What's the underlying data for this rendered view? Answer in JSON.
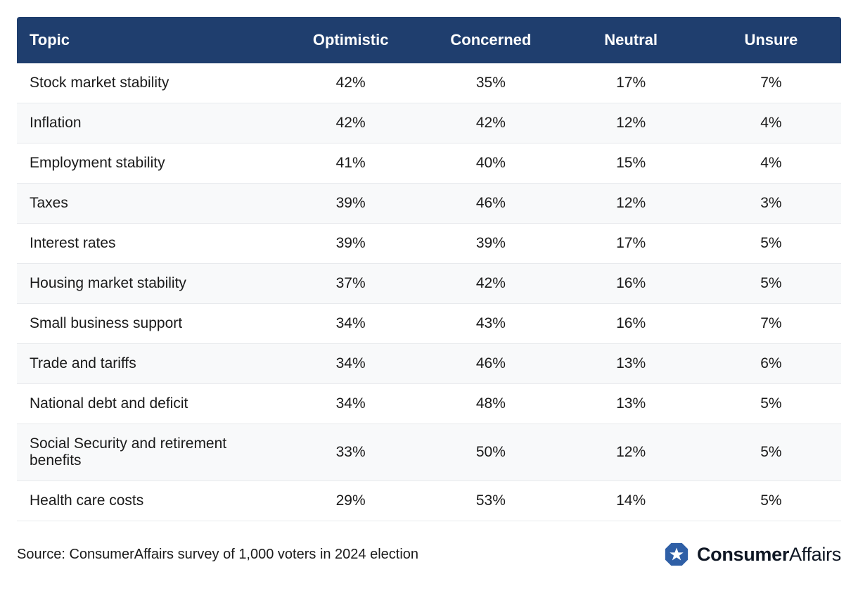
{
  "table": {
    "type": "table",
    "header_bg": "#1f3e6e",
    "header_fg": "#ffffff",
    "row_alt_bg": "#f8f9fa",
    "row_bg": "#ffffff",
    "border_color": "#e8eaed",
    "header_fontsize": 22,
    "cell_fontsize": 21,
    "columns": [
      {
        "label": "Topic",
        "align": "left",
        "width": "32%"
      },
      {
        "label": "Optimistic",
        "align": "center",
        "width": "17%"
      },
      {
        "label": "Concerned",
        "align": "center",
        "width": "17%"
      },
      {
        "label": "Neutral",
        "align": "center",
        "width": "17%"
      },
      {
        "label": "Unsure",
        "align": "center",
        "width": "17%"
      }
    ],
    "rows": [
      {
        "topic": "Stock market stability",
        "optimistic": "42%",
        "concerned": "35%",
        "neutral": "17%",
        "unsure": "7%"
      },
      {
        "topic": "Inflation",
        "optimistic": "42%",
        "concerned": "42%",
        "neutral": "12%",
        "unsure": "4%"
      },
      {
        "topic": "Employment stability",
        "optimistic": "41%",
        "concerned": "40%",
        "neutral": "15%",
        "unsure": "4%"
      },
      {
        "topic": "Taxes",
        "optimistic": "39%",
        "concerned": "46%",
        "neutral": "12%",
        "unsure": "3%"
      },
      {
        "topic": "Interest rates",
        "optimistic": "39%",
        "concerned": "39%",
        "neutral": "17%",
        "unsure": "5%"
      },
      {
        "topic": "Housing market stability",
        "optimistic": "37%",
        "concerned": "42%",
        "neutral": "16%",
        "unsure": "5%"
      },
      {
        "topic": "Small business support",
        "optimistic": "34%",
        "concerned": "43%",
        "neutral": "16%",
        "unsure": "7%"
      },
      {
        "topic": "Trade and tariffs",
        "optimistic": "34%",
        "concerned": "46%",
        "neutral": "13%",
        "unsure": "6%"
      },
      {
        "topic": "National debt and deficit",
        "optimistic": "34%",
        "concerned": "48%",
        "neutral": "13%",
        "unsure": "5%"
      },
      {
        "topic": "Social Security and retirement benefits",
        "optimistic": "33%",
        "concerned": "50%",
        "neutral": "12%",
        "unsure": "5%"
      },
      {
        "topic": "Health care costs",
        "optimistic": "29%",
        "concerned": "53%",
        "neutral": "14%",
        "unsure": "5%"
      }
    ]
  },
  "footer": {
    "source_text": "Source: ConsumerAffairs survey of 1,000 voters in 2024 election",
    "brand": {
      "bold": "Consumer",
      "regular": "Affairs",
      "badge_color": "#2f5fa6",
      "star_color": "#ffffff"
    }
  }
}
